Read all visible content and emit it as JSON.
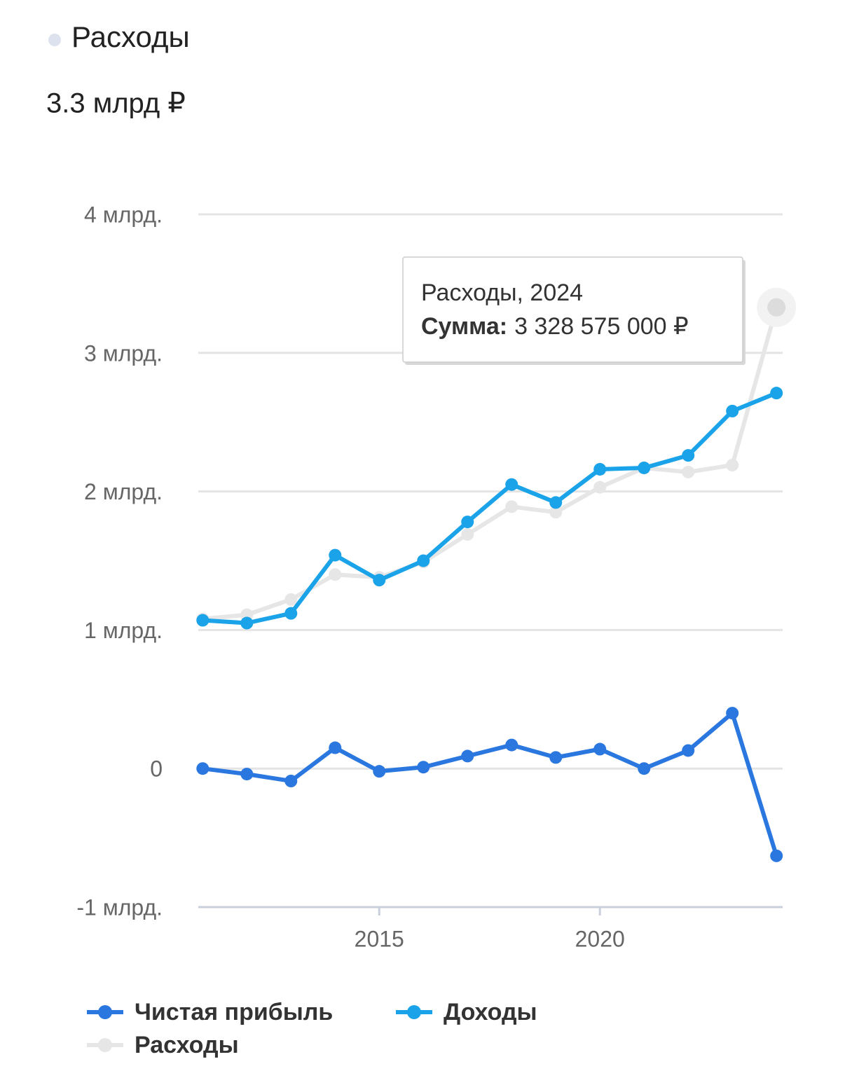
{
  "header": {
    "title": "Расходы",
    "value": "3.3 млрд ₽"
  },
  "chart_data": {
    "type": "line",
    "x": [
      2011,
      2012,
      2013,
      2014,
      2015,
      2016,
      2017,
      2018,
      2019,
      2020,
      2021,
      2022,
      2023,
      2024
    ],
    "series": [
      {
        "name": "Чистая прибыль",
        "color": "#2b77e0",
        "values": [
          0.0,
          -0.04,
          -0.09,
          0.15,
          -0.02,
          0.01,
          0.09,
          0.17,
          0.08,
          0.14,
          0.0,
          0.13,
          0.4,
          -0.63
        ]
      },
      {
        "name": "Доходы",
        "color": "#1aa3e8",
        "values": [
          1.07,
          1.05,
          1.12,
          1.54,
          1.36,
          1.5,
          1.78,
          2.05,
          1.92,
          2.16,
          2.17,
          2.26,
          2.58,
          2.71
        ]
      },
      {
        "name": "Расходы",
        "color": "#e6e6e6",
        "values": [
          1.08,
          1.11,
          1.22,
          1.4,
          1.38,
          1.49,
          1.69,
          1.89,
          1.85,
          2.03,
          2.17,
          2.14,
          2.19,
          3.328575
        ]
      }
    ],
    "xlim": [
      2010.9,
      2024.14
    ],
    "xticks": [
      2015,
      2020
    ],
    "ylim": [
      -1,
      4
    ],
    "yticks": [
      {
        "value": -1,
        "label": "-1 млрд."
      },
      0,
      {
        "value": 1,
        "label": "1 млрд."
      },
      {
        "value": 2,
        "label": "2 млрд."
      },
      {
        "value": 3,
        "label": "3 млрд."
      },
      {
        "value": 4,
        "label": "4 млрд."
      }
    ],
    "grid": true,
    "legend": "bottom",
    "tooltip": {
      "title": "Расходы, 2024",
      "label": "Сумма:",
      "text": "3 328 575 000 ₽"
    }
  }
}
